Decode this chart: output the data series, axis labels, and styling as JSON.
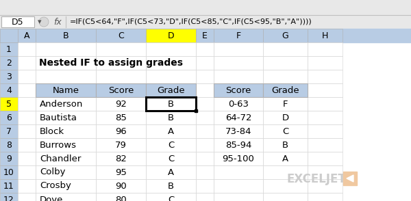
{
  "formula_bar_text": "=IF(C5<64,\"F\",IF(C5<73,\"D\",IF(C5<85,\"C\",IF(C5<95,\"B\",\"A\"))))",
  "cell_ref": "D5",
  "title": "Nested IF to assign grades",
  "col_headers": [
    "A",
    "B",
    "C",
    "D",
    "E",
    "F",
    "G",
    "H"
  ],
  "main_table_headers": [
    "Name",
    "Score",
    "Grade"
  ],
  "main_table_data": [
    [
      "Anderson",
      "92",
      "B"
    ],
    [
      "Bautista",
      "85",
      "B"
    ],
    [
      "Block",
      "96",
      "A"
    ],
    [
      "Burrows",
      "79",
      "C"
    ],
    [
      "Chandler",
      "82",
      "C"
    ],
    [
      "Colby",
      "95",
      "A"
    ],
    [
      "Crosby",
      "90",
      "B"
    ],
    [
      "Dove",
      "80",
      "C"
    ]
  ],
  "ref_table_headers": [
    "Score",
    "Grade"
  ],
  "ref_table_data": [
    [
      "0-63",
      "F"
    ],
    [
      "64-72",
      "D"
    ],
    [
      "73-84",
      "C"
    ],
    [
      "85-94",
      "B"
    ],
    [
      "95-100",
      "A"
    ]
  ],
  "header_bg": "#b8cce4",
  "selected_col_bg": "#ffff00",
  "cell_bg": "#ffffff",
  "toolbar_bg": "#e8e8e8",
  "border_color": "#b0b0b0",
  "grid_color": "#d0d0d0",
  "dark_border": "#000000",
  "text_color": "#000000",
  "exceljet_text": "EXCELJET",
  "logo_bg": "#f0c8a0",
  "figsize": [
    6.0,
    2.94
  ],
  "dpi": 100
}
